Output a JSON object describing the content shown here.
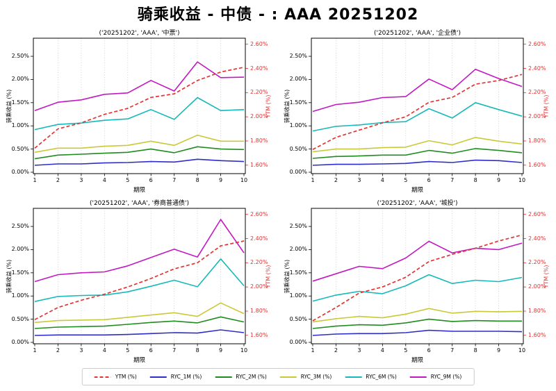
{
  "page_title": "骑乘收益 - 中债 - : AAA 20251202",
  "colors": {
    "ytm": "#e23434",
    "ryc_1m": "#2d2dc9",
    "ryc_2m": "#1f8c1f",
    "ryc_3m": "#c9c938",
    "ryc_6m": "#16b9b9",
    "ryc_9m": "#c218c2",
    "grid": "#c9c9c9",
    "frame": "#000000",
    "right_axis_text": "#e23434"
  },
  "axes": {
    "x_label": "期限",
    "left_label": "骑乘收益 (%)",
    "right_label": "YTM (%)",
    "x_ticks": [
      "1",
      "2",
      "3",
      "4",
      "5",
      "6",
      "7",
      "8",
      "9",
      "10"
    ],
    "x_tick_values": [
      1,
      2,
      3,
      4,
      5,
      6,
      7,
      8,
      9,
      10
    ],
    "left_ticks": [
      "0.00%",
      "0.50%",
      "1.00%",
      "1.50%",
      "2.00%",
      "2.50%"
    ],
    "left_tick_values": [
      0,
      0.5,
      1.0,
      1.5,
      2.0,
      2.5
    ],
    "right_ticks": [
      "1.60%",
      "1.80%",
      "2.00%",
      "2.20%",
      "2.40%",
      "2.60%"
    ],
    "right_tick_values": [
      1.6,
      1.8,
      2.0,
      2.2,
      2.4,
      2.6
    ],
    "left_ylim": [
      -0.03,
      2.89
    ],
    "right_ylim": [
      1.53,
      2.65
    ],
    "grid": "vertical-dotted"
  },
  "legend": [
    {
      "label": "YTM (%)",
      "color_key": "ytm",
      "dashed": true
    },
    {
      "label": "RYC_1M (%)",
      "color_key": "ryc_1m",
      "dashed": false
    },
    {
      "label": "RYC_2M (%)",
      "color_key": "ryc_2m",
      "dashed": false
    },
    {
      "label": "RYC_3M (%)",
      "color_key": "ryc_3m",
      "dashed": false
    },
    {
      "label": "RYC_6M (%)",
      "color_key": "ryc_6m",
      "dashed": false
    },
    {
      "label": "RYC_9M (%)",
      "color_key": "ryc_9m",
      "dashed": false
    }
  ],
  "chart_data": [
    {
      "type": "line",
      "title": "('20251202', 'AAA', '中票')",
      "x": [
        1,
        2,
        3,
        4,
        5,
        6,
        7,
        8,
        9,
        10
      ],
      "xlabel": "期限",
      "ylabel_left": "骑乘收益 (%)",
      "ylabel_right": "YTM (%)",
      "left_ylim": [
        -0.03,
        2.89
      ],
      "right_ylim": [
        1.53,
        2.65
      ],
      "series": [
        {
          "name": "YTM (%)",
          "axis": "right",
          "style": "dashed",
          "color_key": "ytm",
          "values": [
            1.74,
            1.9,
            1.95,
            2.02,
            2.07,
            2.16,
            2.19,
            2.3,
            2.37,
            2.41
          ]
        },
        {
          "name": "RYC_1M (%)",
          "axis": "left",
          "style": "solid",
          "color_key": "ryc_1m",
          "values": [
            0.15,
            0.18,
            0.18,
            0.2,
            0.21,
            0.23,
            0.22,
            0.28,
            0.25,
            0.23
          ]
        },
        {
          "name": "RYC_2M (%)",
          "axis": "left",
          "style": "solid",
          "color_key": "ryc_2m",
          "values": [
            0.29,
            0.37,
            0.39,
            0.41,
            0.43,
            0.5,
            0.42,
            0.55,
            0.5,
            0.49
          ]
        },
        {
          "name": "RYC_3M (%)",
          "axis": "left",
          "style": "solid",
          "color_key": "ryc_3m",
          "values": [
            0.43,
            0.52,
            0.52,
            0.56,
            0.58,
            0.67,
            0.58,
            0.8,
            0.67,
            0.67
          ]
        },
        {
          "name": "RYC_6M (%)",
          "axis": "left",
          "style": "solid",
          "color_key": "ryc_6m",
          "values": [
            0.92,
            1.03,
            1.06,
            1.12,
            1.15,
            1.35,
            1.14,
            1.61,
            1.33,
            1.35
          ]
        },
        {
          "name": "RYC_9M (%)",
          "axis": "left",
          "style": "solid",
          "color_key": "ryc_9m",
          "values": [
            1.33,
            1.51,
            1.56,
            1.68,
            1.71,
            1.98,
            1.75,
            2.38,
            2.04,
            2.05
          ]
        }
      ]
    },
    {
      "type": "line",
      "title": "('20251202', 'AAA', '企业债')",
      "x": [
        1,
        2,
        3,
        4,
        5,
        6,
        7,
        8,
        9,
        10
      ],
      "xlabel": "期限",
      "ylabel_left": "骑乘收益 (%)",
      "ylabel_right": "YTM (%)",
      "left_ylim": [
        -0.03,
        2.89
      ],
      "right_ylim": [
        1.53,
        2.65
      ],
      "series": [
        {
          "name": "YTM (%)",
          "axis": "right",
          "style": "dashed",
          "color_key": "ytm",
          "values": [
            1.73,
            1.83,
            1.89,
            1.95,
            2.0,
            2.12,
            2.16,
            2.27,
            2.3,
            2.35
          ]
        },
        {
          "name": "RYC_1M (%)",
          "axis": "left",
          "style": "solid",
          "color_key": "ryc_1m",
          "values": [
            0.15,
            0.17,
            0.17,
            0.18,
            0.19,
            0.23,
            0.21,
            0.26,
            0.25,
            0.21
          ]
        },
        {
          "name": "RYC_2M (%)",
          "axis": "left",
          "style": "solid",
          "color_key": "ryc_2m",
          "values": [
            0.3,
            0.34,
            0.35,
            0.37,
            0.37,
            0.47,
            0.41,
            0.51,
            0.47,
            0.42
          ]
        },
        {
          "name": "RYC_3M (%)",
          "axis": "left",
          "style": "solid",
          "color_key": "ryc_3m",
          "values": [
            0.44,
            0.5,
            0.5,
            0.53,
            0.54,
            0.68,
            0.59,
            0.75,
            0.67,
            0.61
          ]
        },
        {
          "name": "RYC_6M (%)",
          "axis": "left",
          "style": "solid",
          "color_key": "ryc_6m",
          "values": [
            0.89,
            0.99,
            1.02,
            1.07,
            1.09,
            1.37,
            1.17,
            1.5,
            1.35,
            1.21
          ]
        },
        {
          "name": "RYC_9M (%)",
          "axis": "left",
          "style": "solid",
          "color_key": "ryc_9m",
          "values": [
            1.31,
            1.46,
            1.51,
            1.61,
            1.63,
            2.01,
            1.78,
            2.22,
            2.02,
            1.85
          ]
        }
      ]
    },
    {
      "type": "line",
      "title": "('20251202', 'AAA', '券商普通债')",
      "x": [
        1,
        2,
        3,
        4,
        5,
        6,
        7,
        8,
        9,
        10
      ],
      "xlabel": "期限",
      "ylabel_left": "骑乘收益 (%)",
      "ylabel_right": "YTM (%)",
      "left_ylim": [
        -0.03,
        2.89
      ],
      "right_ylim": [
        1.53,
        2.65
      ],
      "series": [
        {
          "name": "YTM (%)",
          "axis": "right",
          "style": "dashed",
          "color_key": "ytm",
          "values": [
            1.73,
            1.83,
            1.89,
            1.94,
            2.0,
            2.07,
            2.15,
            2.2,
            2.34,
            2.38
          ]
        },
        {
          "name": "RYC_1M (%)",
          "axis": "left",
          "style": "solid",
          "color_key": "ryc_1m",
          "values": [
            0.15,
            0.16,
            0.16,
            0.16,
            0.17,
            0.19,
            0.21,
            0.2,
            0.27,
            0.21
          ]
        },
        {
          "name": "RYC_2M (%)",
          "axis": "left",
          "style": "solid",
          "color_key": "ryc_2m",
          "values": [
            0.3,
            0.33,
            0.34,
            0.35,
            0.39,
            0.43,
            0.46,
            0.42,
            0.55,
            0.44
          ]
        },
        {
          "name": "RYC_3M (%)",
          "axis": "left",
          "style": "solid",
          "color_key": "ryc_3m",
          "values": [
            0.43,
            0.47,
            0.48,
            0.49,
            0.54,
            0.59,
            0.64,
            0.56,
            0.85,
            0.62
          ]
        },
        {
          "name": "RYC_6M (%)",
          "axis": "left",
          "style": "solid",
          "color_key": "ryc_6m",
          "values": [
            0.88,
            0.99,
            1.01,
            1.02,
            1.09,
            1.21,
            1.34,
            1.2,
            1.8,
            1.22
          ]
        },
        {
          "name": "RYC_9M (%)",
          "axis": "left",
          "style": "solid",
          "color_key": "ryc_9m",
          "values": [
            1.31,
            1.46,
            1.5,
            1.52,
            1.65,
            1.83,
            2.01,
            1.84,
            2.65,
            1.93
          ]
        }
      ]
    },
    {
      "type": "line",
      "title": "('20251202', 'AAA', '城投')",
      "x": [
        1,
        2,
        3,
        4,
        5,
        6,
        7,
        8,
        9,
        10
      ],
      "xlabel": "期限",
      "ylabel_left": "骑乘收益 (%)",
      "ylabel_right": "YTM (%)",
      "left_ylim": [
        -0.03,
        2.89
      ],
      "right_ylim": [
        1.53,
        2.65
      ],
      "series": [
        {
          "name": "YTM (%)",
          "axis": "right",
          "style": "dashed",
          "color_key": "ytm",
          "values": [
            1.72,
            1.83,
            1.95,
            2.0,
            2.08,
            2.21,
            2.27,
            2.32,
            2.38,
            2.43
          ]
        },
        {
          "name": "RYC_1M (%)",
          "axis": "left",
          "style": "solid",
          "color_key": "ryc_1m",
          "values": [
            0.15,
            0.18,
            0.19,
            0.19,
            0.21,
            0.26,
            0.24,
            0.24,
            0.24,
            0.23
          ]
        },
        {
          "name": "RYC_2M (%)",
          "axis": "left",
          "style": "solid",
          "color_key": "ryc_2m",
          "values": [
            0.3,
            0.35,
            0.38,
            0.37,
            0.42,
            0.5,
            0.45,
            0.47,
            0.46,
            0.46
          ]
        },
        {
          "name": "RYC_3M (%)",
          "axis": "left",
          "style": "solid",
          "color_key": "ryc_3m",
          "values": [
            0.44,
            0.51,
            0.56,
            0.53,
            0.61,
            0.73,
            0.63,
            0.67,
            0.66,
            0.67
          ]
        },
        {
          "name": "RYC_6M (%)",
          "axis": "left",
          "style": "solid",
          "color_key": "ryc_6m",
          "values": [
            0.89,
            1.02,
            1.1,
            1.05,
            1.22,
            1.46,
            1.27,
            1.34,
            1.31,
            1.4
          ]
        },
        {
          "name": "RYC_9M (%)",
          "axis": "left",
          "style": "solid",
          "color_key": "ryc_9m",
          "values": [
            1.32,
            1.48,
            1.64,
            1.59,
            1.82,
            2.18,
            1.93,
            2.03,
            2.0,
            2.14
          ]
        }
      ]
    }
  ]
}
